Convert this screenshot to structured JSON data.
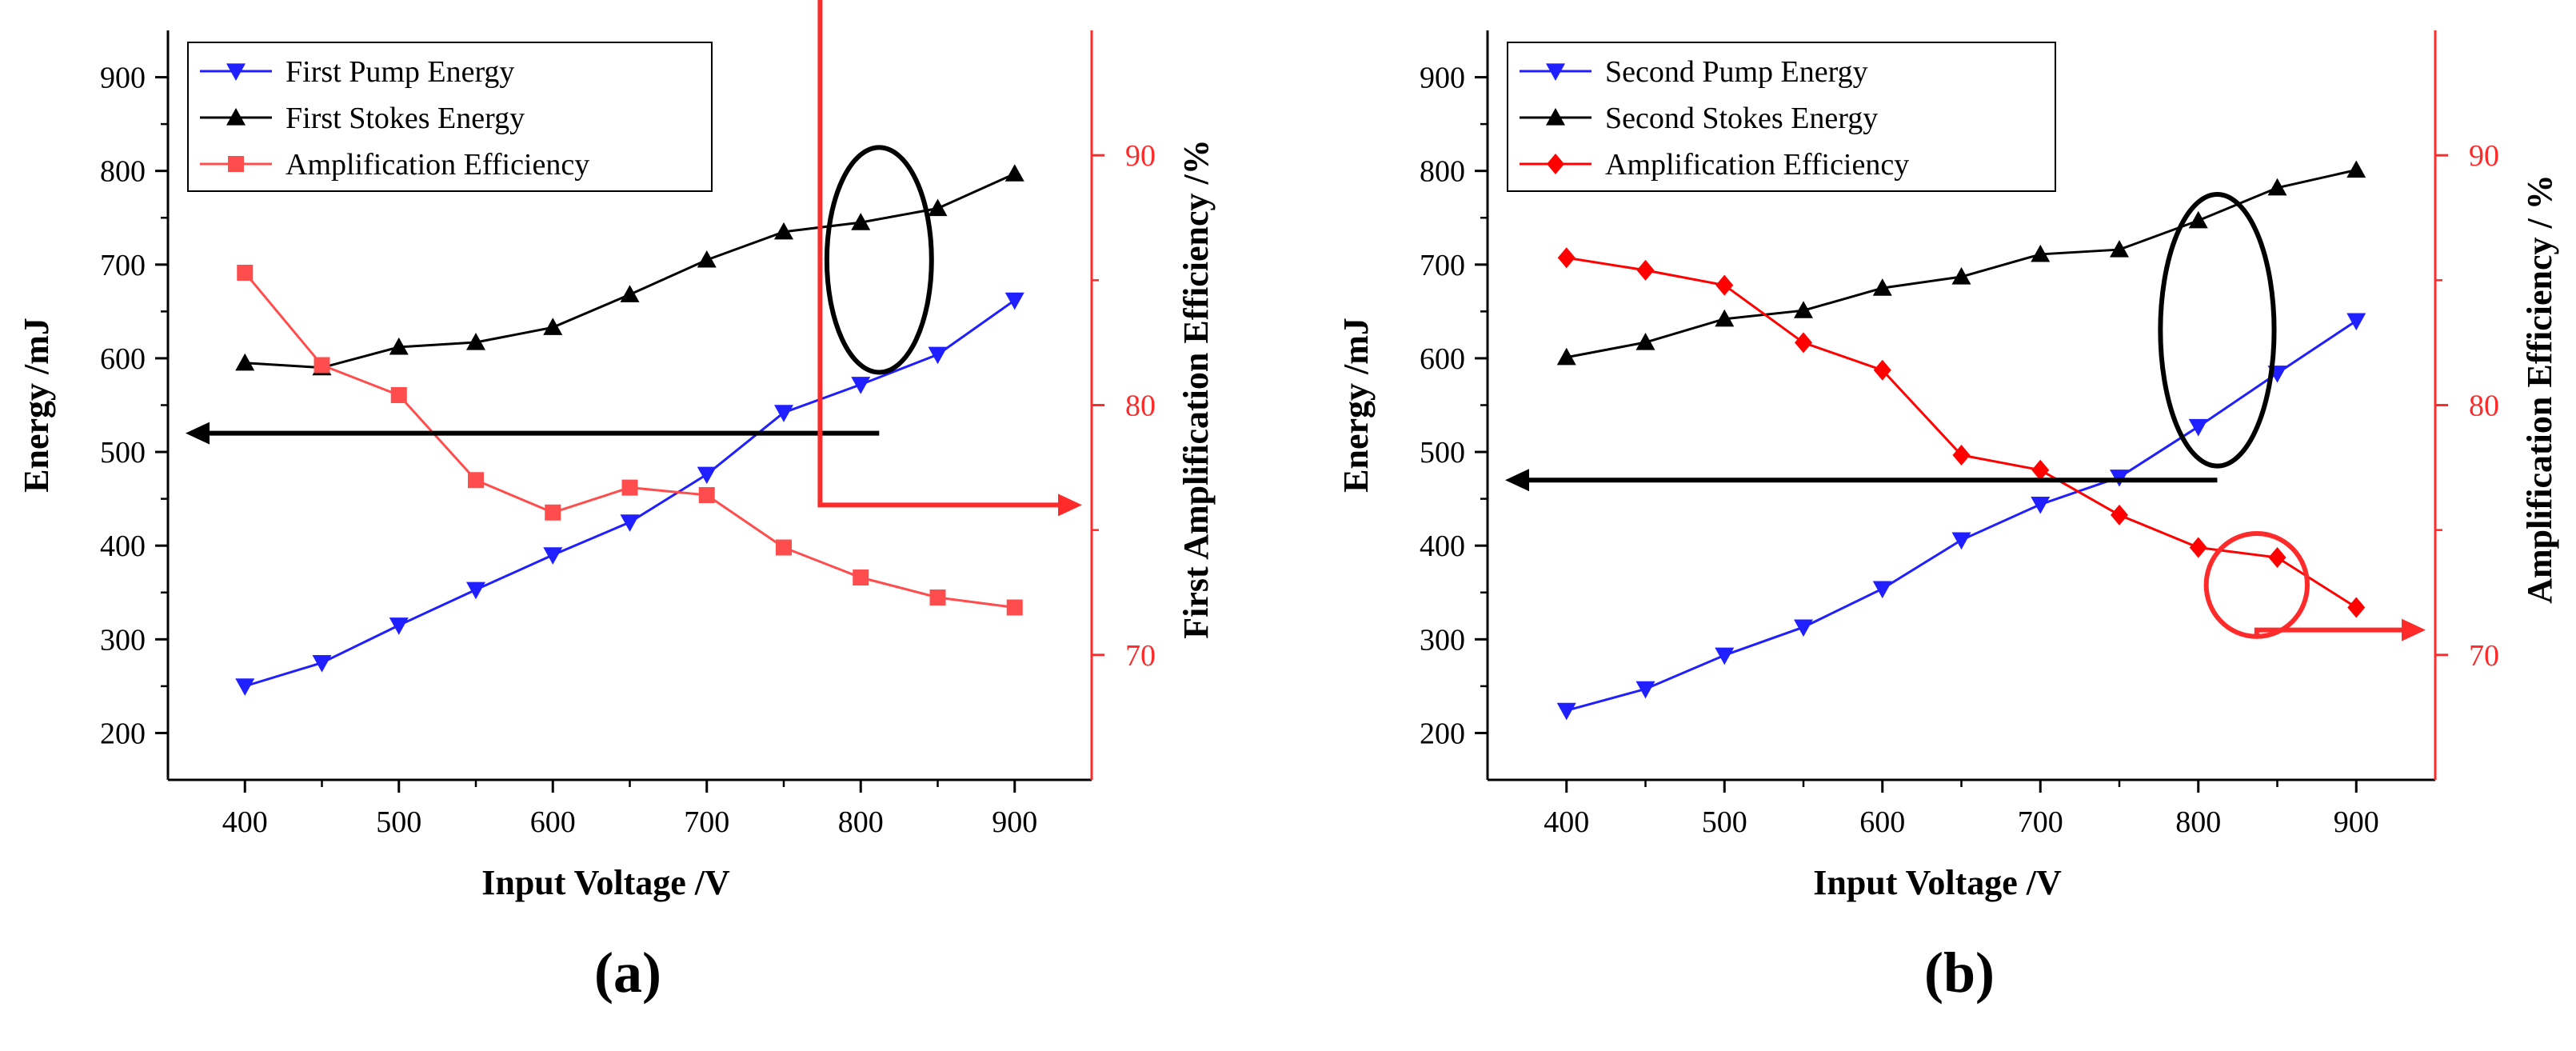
{
  "colors": {
    "pump": "#1f1fff",
    "stokes": "#000000",
    "eff_a": "#ff4d4d",
    "eff_b": "#ff0000",
    "axis_right": "#ff2a2a"
  },
  "chart_data": [
    {
      "type": "line",
      "panel_label": "(a)",
      "xlabel": "Input Voltage /V",
      "ylabel_left": "Energy /mJ",
      "ylabel_right": "First Amplification Efficiency /%",
      "x": [
        400,
        450,
        500,
        550,
        600,
        650,
        700,
        750,
        800,
        850,
        900
      ],
      "xlim": [
        350,
        950
      ],
      "ylim_left": [
        150,
        950
      ],
      "ylim_right": [
        65,
        95
      ],
      "xticks": [
        400,
        500,
        600,
        700,
        800,
        900
      ],
      "yticks_left": [
        200,
        300,
        400,
        500,
        600,
        700,
        800,
        900
      ],
      "yticks_right": [
        70,
        80,
        90
      ],
      "legend_position": "top-left",
      "series": [
        {
          "name": "First Pump Energy",
          "axis": "left",
          "marker": "triangle-down",
          "color_key": "pump",
          "values": [
            250,
            275,
            315,
            353,
            390,
            425,
            476,
            542,
            572,
            604,
            662
          ]
        },
        {
          "name": "First Stokes Energy",
          "axis": "left",
          "marker": "triangle-up",
          "color_key": "stokes",
          "values": [
            595,
            590,
            612,
            617,
            633,
            668,
            705,
            735,
            745,
            760,
            797
          ]
        },
        {
          "name": "Amplification Efficiency",
          "axis": "right",
          "marker": "square",
          "color_key": "eff_a",
          "values": [
            85.3,
            81.6,
            80.4,
            77.0,
            75.7,
            76.7,
            76.4,
            74.3,
            73.1,
            72.3,
            71.9
          ]
        }
      ],
      "annotations": [
        {
          "shape": "ellipse",
          "color": "stokes",
          "center_x": 812,
          "center_y": 705,
          "rx": 34,
          "ry": 120,
          "arrow_to": "left-axis",
          "arrow_y": 520
        },
        {
          "shape": "ellipse",
          "color": "axis_right",
          "center_x": 764,
          "center_y": 395,
          "rx": 32,
          "ry": 55,
          "arrow_to": "right-axis",
          "arrow_y": 76.0
        }
      ]
    },
    {
      "type": "line",
      "panel_label": "(b)",
      "xlabel": "Input Voltage /V",
      "ylabel_left": "Energy /mJ",
      "ylabel_right": "Amplification Efficiency / %",
      "x": [
        400,
        450,
        500,
        550,
        600,
        650,
        700,
        750,
        800,
        850,
        900
      ],
      "xlim": [
        350,
        950
      ],
      "ylim_left": [
        150,
        950
      ],
      "ylim_right": [
        65,
        95
      ],
      "xticks": [
        400,
        500,
        600,
        700,
        800,
        900
      ],
      "yticks_left": [
        200,
        300,
        400,
        500,
        600,
        700,
        800,
        900
      ],
      "yticks_right": [
        70,
        80,
        90
      ],
      "legend_position": "top-left",
      "series": [
        {
          "name": "Second Pump Energy",
          "axis": "left",
          "marker": "triangle-down",
          "color_key": "pump",
          "values": [
            224,
            247,
            283,
            313,
            354,
            406,
            444,
            473,
            527,
            584,
            640
          ]
        },
        {
          "name": "Second Stokes Energy",
          "axis": "left",
          "marker": "triangle-up",
          "color_key": "stokes",
          "values": [
            601,
            617,
            642,
            651,
            675,
            687,
            711,
            716,
            747,
            782,
            801
          ]
        },
        {
          "name": "Amplification Efficiency",
          "axis": "right",
          "marker": "diamond",
          "color_key": "eff_b",
          "values": [
            85.9,
            85.4,
            84.8,
            82.5,
            81.4,
            78.0,
            77.4,
            75.6,
            74.3,
            73.9,
            71.9
          ]
        }
      ],
      "annotations": [
        {
          "shape": "ellipse",
          "color": "stokes",
          "center_x": 812,
          "center_y": 630,
          "rx": 36,
          "ry": 145,
          "arrow_to": "left-axis",
          "arrow_y": 470
        },
        {
          "shape": "ellipse",
          "color": "axis_right",
          "center_x": 837,
          "center_y": 72.8,
          "rx": 32,
          "ry": 55,
          "arrow_to": "right-axis",
          "arrow_y": 71.0
        }
      ]
    }
  ]
}
